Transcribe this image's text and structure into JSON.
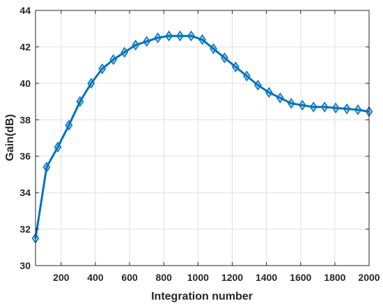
{
  "chart_data": {
    "type": "line",
    "xlabel": "Integration number",
    "ylabel": "Gain(dB)",
    "xlim": [
      50,
      2000
    ],
    "ylim": [
      30,
      44
    ],
    "x_ticks": [
      200,
      400,
      600,
      800,
      1000,
      1200,
      1400,
      1600,
      1800,
      2000
    ],
    "y_ticks": [
      30,
      32,
      34,
      36,
      38,
      40,
      42,
      44
    ],
    "x_tick_labels": [
      "200",
      "400",
      "600",
      "800",
      "1000",
      "1200",
      "1400",
      "1600",
      "1800",
      "2000"
    ],
    "y_tick_labels": [
      "30",
      "32",
      "34",
      "36",
      "38",
      "40",
      "42",
      "44"
    ],
    "grid": true,
    "marker": "diamond",
    "series_color": "#0072BD",
    "series": [
      {
        "x": [
          50,
          115,
          180,
          245,
          310,
          375,
          440,
          505,
          570,
          635,
          700,
          765,
          830,
          895,
          960,
          1025,
          1090,
          1155,
          1220,
          1285,
          1350,
          1415,
          1480,
          1545,
          1610,
          1675,
          1740,
          1805,
          1870,
          1935,
          2000
        ],
        "values": [
          31.5,
          35.4,
          36.5,
          37.7,
          39.0,
          40.0,
          40.8,
          41.3,
          41.7,
          42.1,
          42.3,
          42.5,
          42.6,
          42.6,
          42.6,
          42.4,
          41.9,
          41.4,
          40.9,
          40.4,
          39.9,
          39.5,
          39.2,
          38.9,
          38.8,
          38.7,
          38.7,
          38.65,
          38.6,
          38.55,
          38.45
        ]
      }
    ]
  }
}
